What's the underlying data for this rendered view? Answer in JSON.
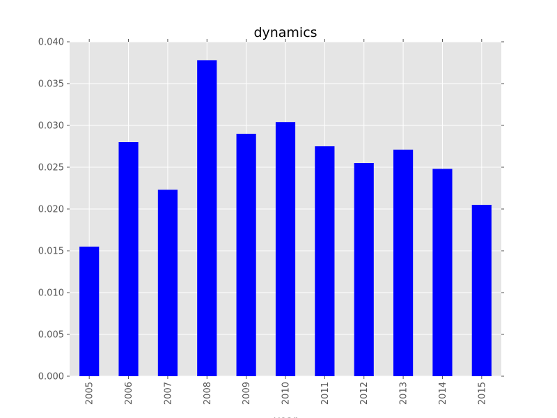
{
  "chart_data": {
    "type": "bar",
    "title": "dynamics",
    "xlabel": "year",
    "ylabel": "",
    "categories": [
      "2005",
      "2006",
      "2007",
      "2008",
      "2009",
      "2010",
      "2011",
      "2012",
      "2013",
      "2014",
      "2015"
    ],
    "series": [
      {
        "values": [
          0.0155,
          0.028,
          0.0223,
          0.0378,
          0.029,
          0.0304,
          0.0275,
          0.0255,
          0.0271,
          0.0248,
          0.0205
        ]
      }
    ],
    "ylim": [
      0,
      0.04
    ],
    "yticks": [
      "0.000",
      "0.005",
      "0.010",
      "0.015",
      "0.020",
      "0.025",
      "0.030",
      "0.035",
      "0.040"
    ],
    "grid": true,
    "legend": "none",
    "colors": {
      "bar": "#0000ff",
      "plot_background": "#e5e5e5",
      "grid": "#ffffff"
    }
  }
}
